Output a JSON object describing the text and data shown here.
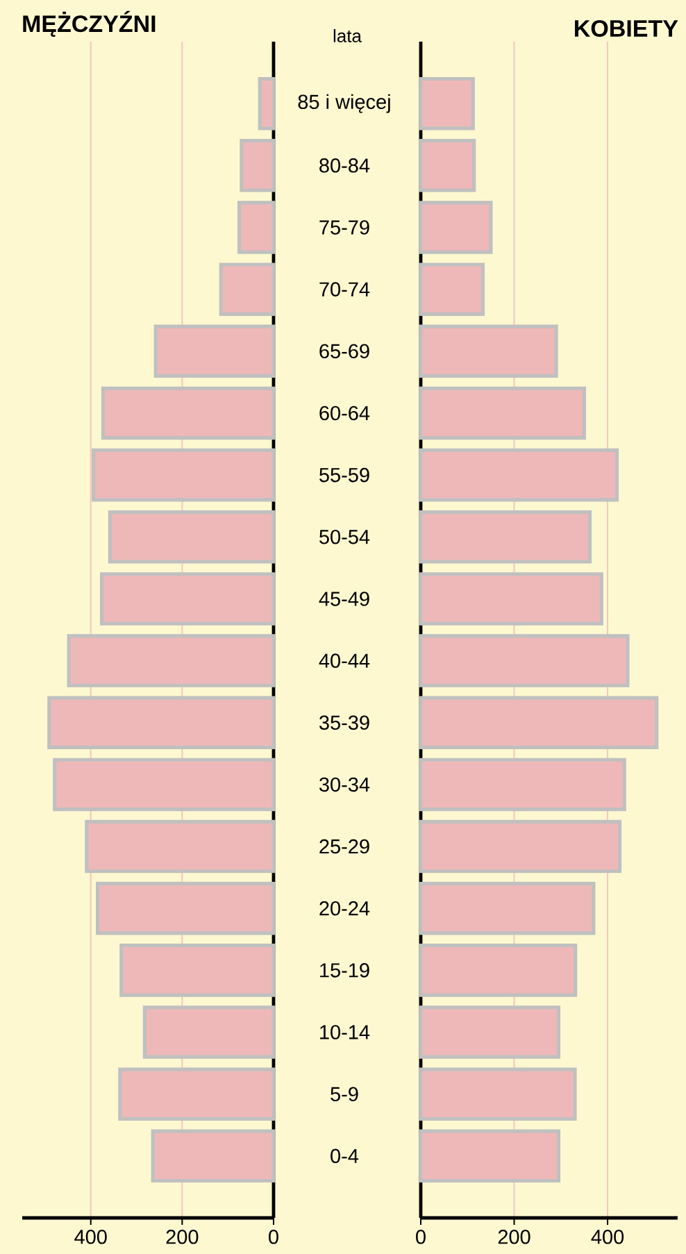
{
  "chart_data": [
    {
      "type": "bar",
      "orientation": "horizontal",
      "title": "MĘŻCZYŹNI",
      "categories": [
        "85 i więcej",
        "80-84",
        "75-79",
        "70-74",
        "65-69",
        "60-64",
        "55-59",
        "50-54",
        "45-49",
        "40-44",
        "35-39",
        "30-34",
        "25-29",
        "20-24",
        "15-19",
        "10-14",
        "5-9",
        "0-4"
      ],
      "values": [
        30,
        70,
        75,
        115,
        258,
        373,
        394,
        358,
        376,
        448,
        491,
        479,
        409,
        385,
        333,
        282,
        336,
        264
      ],
      "color": "#efb8b8",
      "xlim": [
        550,
        0
      ],
      "xticks": [
        0,
        200,
        400
      ],
      "grid": "x",
      "ylabel": "lata"
    },
    {
      "type": "bar",
      "orientation": "horizontal",
      "title": "KOBIETY",
      "tick_labels": "x",
      "categories": [
        null,
        null,
        null,
        null,
        null,
        null,
        null,
        null,
        null,
        null,
        null,
        null,
        null,
        null,
        null,
        null,
        null,
        null
      ],
      "values": [
        112,
        114,
        150,
        133,
        290,
        350,
        420,
        362,
        387,
        443,
        505,
        436,
        426,
        370,
        331,
        295,
        330,
        295
      ],
      "color": "#efb8b8",
      "xlim": [
        0,
        550
      ],
      "xticks": [
        0,
        200,
        400
      ],
      "grid": "x"
    }
  ]
}
